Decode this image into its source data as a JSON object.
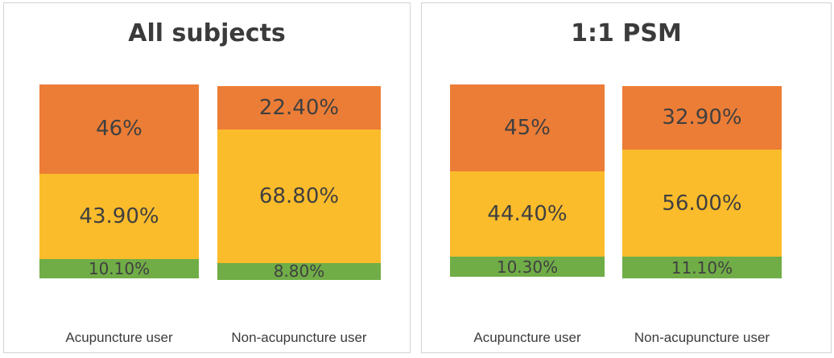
{
  "chart_data": [
    {
      "type": "bar",
      "stacked": true,
      "title": "All subjects",
      "categories": [
        "Acupuncture user",
        "Non-acupuncture user"
      ],
      "series": [
        {
          "color": "#70ad47",
          "values": [
            10.1,
            8.8
          ],
          "labels": [
            "10.10%",
            "8.80%"
          ]
        },
        {
          "color": "#fbbc2b",
          "values": [
            43.9,
            68.8
          ],
          "labels": [
            "43.90%",
            "68.80%"
          ]
        },
        {
          "color": "#ec7d36",
          "values": [
            46,
            22.4
          ],
          "labels": [
            "46%",
            "22.40%"
          ]
        }
      ]
    },
    {
      "type": "bar",
      "stacked": true,
      "title": "1:1 PSM",
      "categories": [
        "Acupuncture user",
        "Non-acupuncture user"
      ],
      "series": [
        {
          "color": "#70ad47",
          "values": [
            10.3,
            11.1
          ],
          "labels": [
            "10.30%",
            "11.10%"
          ]
        },
        {
          "color": "#fbbc2b",
          "values": [
            44.4,
            56.0
          ],
          "labels": [
            "44.40%",
            "56.00%"
          ]
        },
        {
          "color": "#ec7d36",
          "values": [
            45,
            32.9
          ],
          "labels": [
            "45%",
            "32.90%"
          ]
        }
      ]
    }
  ]
}
